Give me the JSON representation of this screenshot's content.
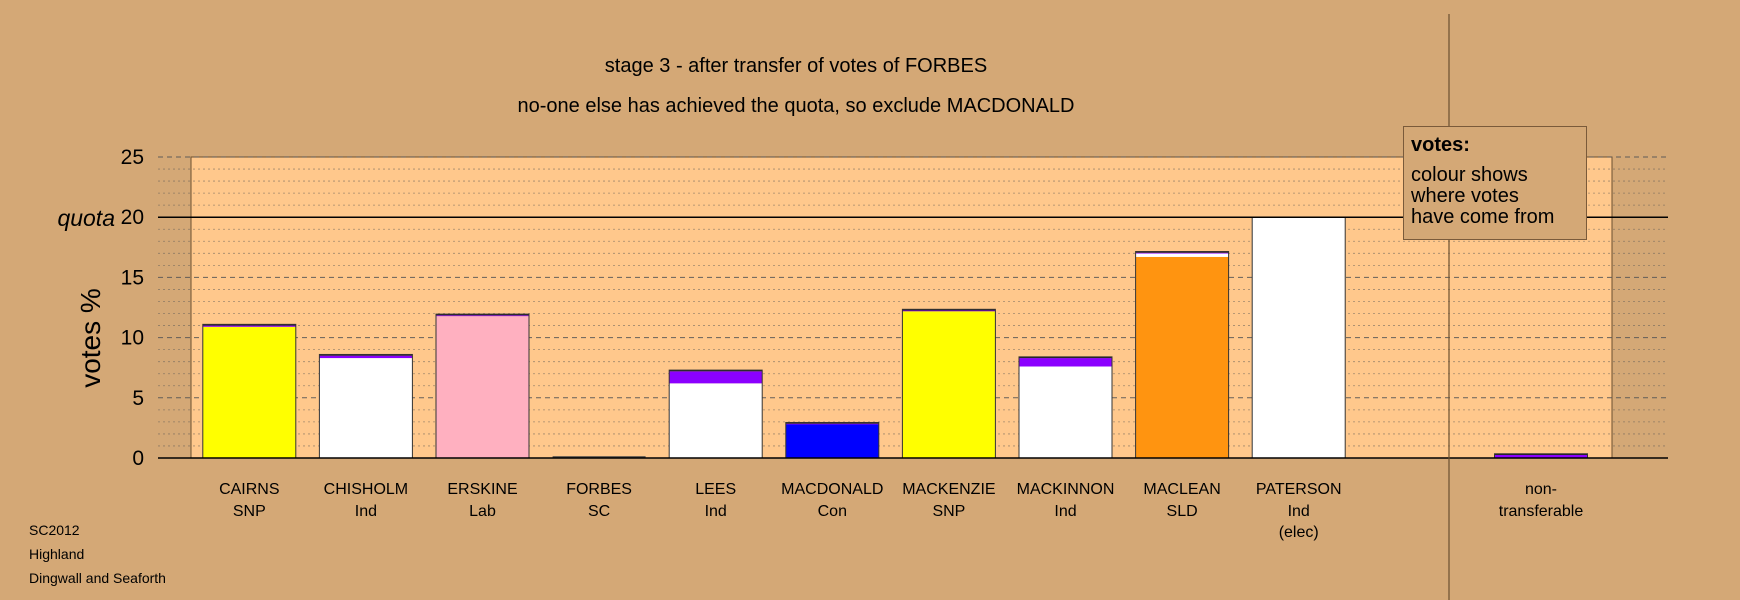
{
  "chart_data": {
    "type": "bar",
    "title": "stage 3 - after transfer of votes of FORBES",
    "subtitle": "no-one else has achieved the quota, so exclude MACDONALD",
    "ylabel": "votes %",
    "ylim": [
      0,
      25
    ],
    "yticks": [
      0,
      5,
      10,
      15,
      20,
      25
    ],
    "quota_label": "quota",
    "quota": 20,
    "candidates": [
      {
        "name": "CAIRNS",
        "party": "SNP",
        "extra": "",
        "base_color": "#FFFF00",
        "segments": [
          {
            "color": "#FFFF00",
            "value": 10.9
          },
          {
            "color": "#8B00FF",
            "value": 0.1
          },
          {
            "color": "#222222",
            "value": 0.1
          }
        ]
      },
      {
        "name": "CHISHOLM",
        "party": "Ind",
        "extra": "",
        "base_color": "#FFFFFF",
        "segments": [
          {
            "color": "#FFFFFF",
            "value": 8.3
          },
          {
            "color": "#8B00FF",
            "value": 0.2
          },
          {
            "color": "#222222",
            "value": 0.1
          }
        ]
      },
      {
        "name": "ERSKINE",
        "party": "Lab",
        "extra": "",
        "base_color": "#FFB0C0",
        "segments": [
          {
            "color": "#FFB0C0",
            "value": 11.8
          },
          {
            "color": "#8B00FF",
            "value": 0.05
          },
          {
            "color": "#222222",
            "value": 0.1
          }
        ]
      },
      {
        "name": "FORBES",
        "party": "SC",
        "extra": "",
        "base_color": "#A0A0A0",
        "segments": []
      },
      {
        "name": "LEES",
        "party": "Ind",
        "extra": "",
        "base_color": "#FFFFFF",
        "segments": [
          {
            "color": "#FFFFFF",
            "value": 6.2
          },
          {
            "color": "#8B00FF",
            "value": 1.0
          },
          {
            "color": "#222222",
            "value": 0.1
          }
        ]
      },
      {
        "name": "MACDONALD",
        "party": "Con",
        "extra": "",
        "base_color": "#0000FF",
        "segments": [
          {
            "color": "#0000FF",
            "value": 2.8
          },
          {
            "color": "#8B00FF",
            "value": 0.05
          },
          {
            "color": "#222222",
            "value": 0.1
          }
        ]
      },
      {
        "name": "MACKENZIE",
        "party": "SNP",
        "extra": "",
        "base_color": "#FFFF00",
        "segments": [
          {
            "color": "#FFFF00",
            "value": 12.2
          },
          {
            "color": "#8B00FF",
            "value": 0.05
          },
          {
            "color": "#222222",
            "value": 0.1
          }
        ]
      },
      {
        "name": "MACKINNON",
        "party": "Ind",
        "extra": "",
        "base_color": "#FFFFFF",
        "segments": [
          {
            "color": "#FFFFFF",
            "value": 7.6
          },
          {
            "color": "#8B00FF",
            "value": 0.7
          },
          {
            "color": "#222222",
            "value": 0.1
          }
        ]
      },
      {
        "name": "MACLEAN",
        "party": "SLD",
        "extra": "",
        "base_color": "#FF9410",
        "segments": [
          {
            "color": "#FF9410",
            "value": 16.7
          },
          {
            "color": "#FFFFFF",
            "value": 0.3
          },
          {
            "color": "#8B00FF",
            "value": 0.05
          },
          {
            "color": "#222222",
            "value": 0.1
          }
        ]
      },
      {
        "name": "PATERSON",
        "party": "Ind",
        "extra": "(elec)",
        "base_color": "#FFFFFF",
        "segments": [
          {
            "color": "#FFFFFF",
            "value": 20.0
          }
        ]
      }
    ],
    "nontransferable": {
      "label_line1": "non-",
      "label_line2": "transferable",
      "segments": [
        {
          "color": "#8B00FF",
          "value": 0.25
        },
        {
          "color": "#222222",
          "value": 0.1
        }
      ]
    },
    "legend": {
      "title": "votes:",
      "body": "colour shows\nwhere votes\nhave come from"
    },
    "colors": {
      "background": "#D4A876",
      "plot_background": "#FFC88C",
      "grid": "#555555"
    }
  },
  "notes": [
    "SC2012",
    "Highland",
    "Dingwall and Seaforth"
  ]
}
